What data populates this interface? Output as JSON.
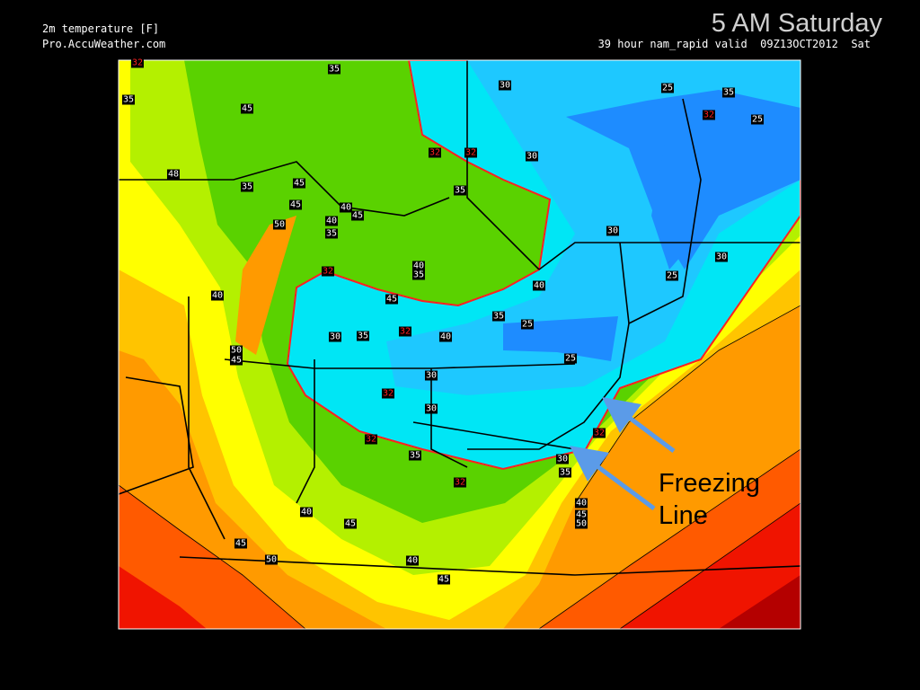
{
  "header": {
    "variable": "2m temperature [F]",
    "source": "Pro.AccuWeather.com",
    "valid_line": "39 hour nam_rapid valid  09Z13OCT2012  Sat",
    "title": "5 AM Saturday"
  },
  "annotation": {
    "line1": "Freezing",
    "line2": "Line",
    "arrow_color": "#5b9be8"
  },
  "legend_colors": {
    "freezing_contour": "#ff2020",
    "coldest": "#1e8cff",
    "cold": "#00e6f5",
    "mild": "#5ad200",
    "warm": "#ffff00",
    "warmer": "#ffa000",
    "warmest": "#c00000"
  },
  "contour_labels": [
    "32",
    "35",
    "35",
    "30",
    "25",
    "35",
    "32",
    "25",
    "45",
    "32",
    "32",
    "30",
    "35",
    "48",
    "35",
    "45",
    "40",
    "45",
    "45",
    "40",
    "50",
    "35",
    "30",
    "40",
    "35",
    "32",
    "45",
    "40",
    "25",
    "30",
    "40",
    "35",
    "25",
    "30",
    "35",
    "32",
    "40",
    "25",
    "50",
    "45",
    "30",
    "32",
    "30",
    "32",
    "32",
    "35",
    "30",
    "35",
    "32",
    "40",
    "45",
    "40",
    "45",
    "50",
    "45",
    "50",
    "40",
    "45"
  ]
}
